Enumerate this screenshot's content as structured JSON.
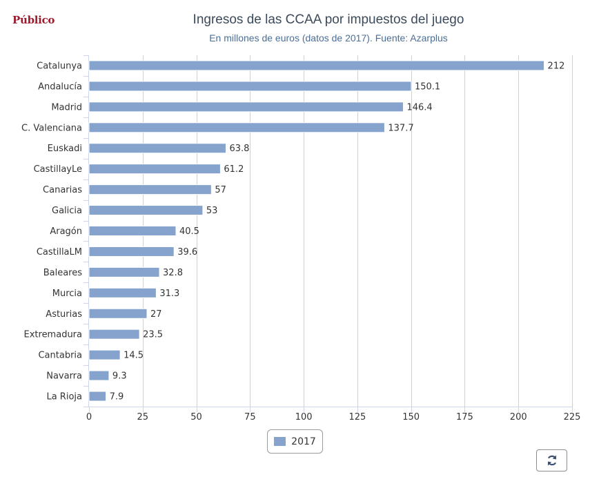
{
  "brand": {
    "name": "Público"
  },
  "chart_data": {
    "type": "bar",
    "orientation": "horizontal",
    "title": "Ingresos de las CCAA por impuestos del juego",
    "subtitle": "En millones de euros (datos de 2017). Fuente: Azarplus",
    "categories": [
      "Catalunya",
      "Andalucía",
      "Madrid",
      "C. Valenciana",
      "Euskadi",
      "CastillayLe",
      "Canarias",
      "Galicia",
      "Aragón",
      "CastillaLM",
      "Baleares",
      "Murcia",
      "Asturias",
      "Extremadura",
      "Cantabria",
      "Navarra",
      "La Rioja"
    ],
    "series": [
      {
        "name": "2017",
        "values": [
          212,
          150.1,
          146.4,
          137.7,
          63.8,
          61.2,
          57,
          53,
          40.5,
          39.6,
          32.8,
          31.3,
          27,
          23.5,
          14.5,
          9.3,
          7.9
        ]
      }
    ],
    "data_labels": [
      "212",
      "150.1",
      "146.4",
      "137.7",
      "63.8",
      "61.2",
      "57",
      "53",
      "40.5",
      "39.6",
      "32.8",
      "31.3",
      "27",
      "23.5",
      "14.5",
      "9.3",
      "7.9"
    ],
    "xlim": [
      0,
      225
    ],
    "ticks": [
      0,
      25,
      50,
      75,
      100,
      125,
      150,
      175,
      200,
      225
    ],
    "grid": true,
    "legend_position": "bottom-center",
    "bar_color": "#85a3cd"
  },
  "legend": {
    "label": "2017"
  },
  "controls": {
    "refresh_icon": "refresh-icon"
  }
}
